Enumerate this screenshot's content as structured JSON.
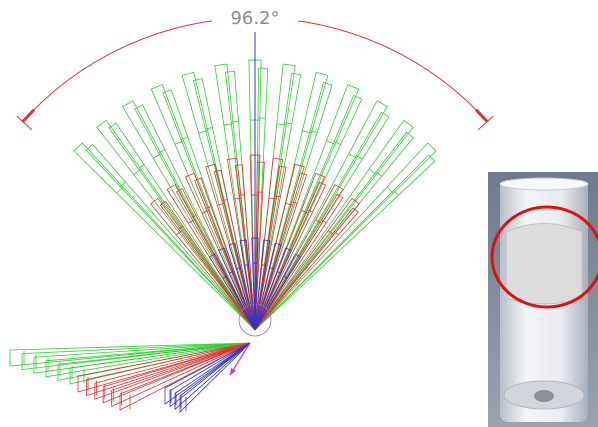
{
  "diagram": {
    "angle_label": "96.2°"
  }
}
